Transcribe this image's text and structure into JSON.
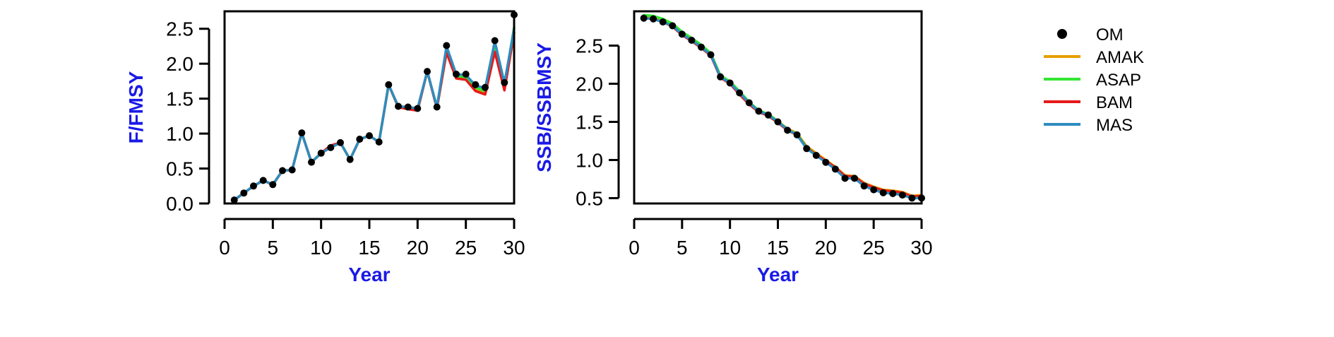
{
  "legend": {
    "placement": "right",
    "entries": [
      {
        "label": "OM",
        "kind": "point",
        "color": "#000000"
      },
      {
        "label": "AMAK",
        "kind": "line",
        "color": "#E69F00"
      },
      {
        "label": "ASAP",
        "kind": "line",
        "color": "#33E633"
      },
      {
        "label": "BAM",
        "kind": "line",
        "color": "#E61A1A"
      },
      {
        "label": "MAS",
        "kind": "line",
        "color": "#2F8CBF"
      }
    ]
  },
  "axis_title_color": "#1A1AE6",
  "chart_data": [
    {
      "type": "line",
      "xlabel": "Year",
      "ylabel": "F/FMSY",
      "xlim": [
        0,
        30
      ],
      "ylim": [
        0,
        2.75
      ],
      "xticks": [
        "0",
        "5",
        "10",
        "15",
        "20",
        "25",
        "30"
      ],
      "yticks": [
        "0.0",
        "0.5",
        "1.0",
        "1.5",
        "2.0",
        "2.5"
      ],
      "x": [
        1,
        2,
        3,
        4,
        5,
        6,
        7,
        8,
        9,
        10,
        11,
        12,
        13,
        14,
        15,
        16,
        17,
        18,
        19,
        20,
        21,
        22,
        23,
        24,
        25,
        26,
        27,
        28,
        29,
        30
      ],
      "series": [
        {
          "name": "OM",
          "style": "points",
          "values": [
            0.05,
            0.15,
            0.25,
            0.33,
            0.27,
            0.47,
            0.48,
            1.01,
            0.59,
            0.72,
            0.8,
            0.87,
            0.63,
            0.92,
            0.97,
            0.88,
            1.7,
            1.39,
            1.38,
            1.36,
            1.89,
            1.38,
            2.26,
            1.85,
            1.85,
            1.7,
            1.66,
            2.33,
            1.73,
            2.7
          ]
        },
        {
          "name": "AMAK",
          "style": "line",
          "values": [
            0.05,
            0.15,
            0.25,
            0.33,
            0.27,
            0.47,
            0.48,
            1.01,
            0.59,
            0.72,
            0.82,
            0.87,
            0.63,
            0.92,
            0.97,
            0.88,
            1.7,
            1.38,
            1.36,
            1.34,
            1.89,
            1.37,
            2.18,
            1.8,
            1.78,
            1.63,
            1.58,
            2.18,
            1.63,
            2.45
          ]
        },
        {
          "name": "ASAP",
          "style": "line",
          "values": [
            0.05,
            0.15,
            0.25,
            0.33,
            0.27,
            0.47,
            0.48,
            1.01,
            0.59,
            0.72,
            0.81,
            0.87,
            0.63,
            0.92,
            0.97,
            0.88,
            1.7,
            1.38,
            1.37,
            1.35,
            1.89,
            1.37,
            2.22,
            1.82,
            1.81,
            1.66,
            1.61,
            2.24,
            1.68,
            2.52
          ]
        },
        {
          "name": "BAM",
          "style": "line",
          "values": [
            0.05,
            0.15,
            0.25,
            0.33,
            0.27,
            0.47,
            0.48,
            1.01,
            0.59,
            0.72,
            0.83,
            0.87,
            0.63,
            0.92,
            0.97,
            0.88,
            1.7,
            1.38,
            1.35,
            1.33,
            1.89,
            1.36,
            2.16,
            1.79,
            1.77,
            1.61,
            1.56,
            2.17,
            1.62,
            2.44
          ]
        },
        {
          "name": "MAS",
          "style": "line",
          "values": [
            0.05,
            0.15,
            0.25,
            0.33,
            0.27,
            0.47,
            0.48,
            1.01,
            0.59,
            0.72,
            0.8,
            0.87,
            0.63,
            0.92,
            0.97,
            0.88,
            1.7,
            1.39,
            1.38,
            1.36,
            1.89,
            1.38,
            2.25,
            1.85,
            1.84,
            1.69,
            1.65,
            2.32,
            1.72,
            2.5
          ]
        }
      ]
    },
    {
      "type": "line",
      "xlabel": "Year",
      "ylabel": "SSB/SSBMSY",
      "xlim": [
        0,
        30
      ],
      "ylim": [
        0.43,
        2.95
      ],
      "xticks": [
        "0",
        "5",
        "10",
        "15",
        "20",
        "25",
        "30"
      ],
      "yticks": [
        "0.5",
        "1.0",
        "1.5",
        "2.0",
        "2.5"
      ],
      "x": [
        1,
        2,
        3,
        4,
        5,
        6,
        7,
        8,
        9,
        10,
        11,
        12,
        13,
        14,
        15,
        16,
        17,
        18,
        19,
        20,
        21,
        22,
        23,
        24,
        25,
        26,
        27,
        28,
        29,
        30
      ],
      "series": [
        {
          "name": "OM",
          "style": "points",
          "values": [
            2.86,
            2.85,
            2.81,
            2.76,
            2.65,
            2.57,
            2.48,
            2.38,
            2.09,
            2.01,
            1.88,
            1.75,
            1.64,
            1.59,
            1.5,
            1.39,
            1.33,
            1.15,
            1.06,
            0.97,
            0.88,
            0.76,
            0.76,
            0.66,
            0.61,
            0.57,
            0.56,
            0.54,
            0.5,
            0.5
          ]
        },
        {
          "name": "AMAK",
          "style": "line",
          "values": [
            2.87,
            2.86,
            2.82,
            2.77,
            2.66,
            2.58,
            2.49,
            2.38,
            2.1,
            2.02,
            1.89,
            1.76,
            1.65,
            1.6,
            1.51,
            1.41,
            1.35,
            1.18,
            1.09,
            1.0,
            0.91,
            0.8,
            0.79,
            0.7,
            0.65,
            0.61,
            0.6,
            0.58,
            0.53,
            0.54
          ]
        },
        {
          "name": "ASAP",
          "style": "line",
          "values": [
            2.9,
            2.89,
            2.85,
            2.79,
            2.68,
            2.6,
            2.51,
            2.4,
            2.11,
            2.03,
            1.9,
            1.76,
            1.65,
            1.6,
            1.51,
            1.4,
            1.34,
            1.17,
            1.07,
            0.98,
            0.89,
            0.77,
            0.77,
            0.67,
            0.62,
            0.58,
            0.57,
            0.55,
            0.51,
            0.51
          ]
        },
        {
          "name": "BAM",
          "style": "line",
          "values": [
            2.86,
            2.85,
            2.81,
            2.75,
            2.64,
            2.56,
            2.47,
            2.37,
            2.08,
            2.0,
            1.86,
            1.73,
            1.63,
            1.58,
            1.49,
            1.39,
            1.33,
            1.16,
            1.07,
            0.99,
            0.9,
            0.79,
            0.78,
            0.69,
            0.64,
            0.6,
            0.59,
            0.57,
            0.52,
            0.53
          ]
        },
        {
          "name": "MAS",
          "style": "line",
          "values": [
            2.86,
            2.85,
            2.81,
            2.76,
            2.65,
            2.57,
            2.48,
            2.38,
            2.09,
            2.01,
            1.88,
            1.75,
            1.64,
            1.59,
            1.5,
            1.4,
            1.33,
            1.15,
            1.06,
            0.97,
            0.88,
            0.76,
            0.76,
            0.66,
            0.61,
            0.57,
            0.56,
            0.54,
            0.5,
            0.5
          ]
        }
      ]
    }
  ]
}
